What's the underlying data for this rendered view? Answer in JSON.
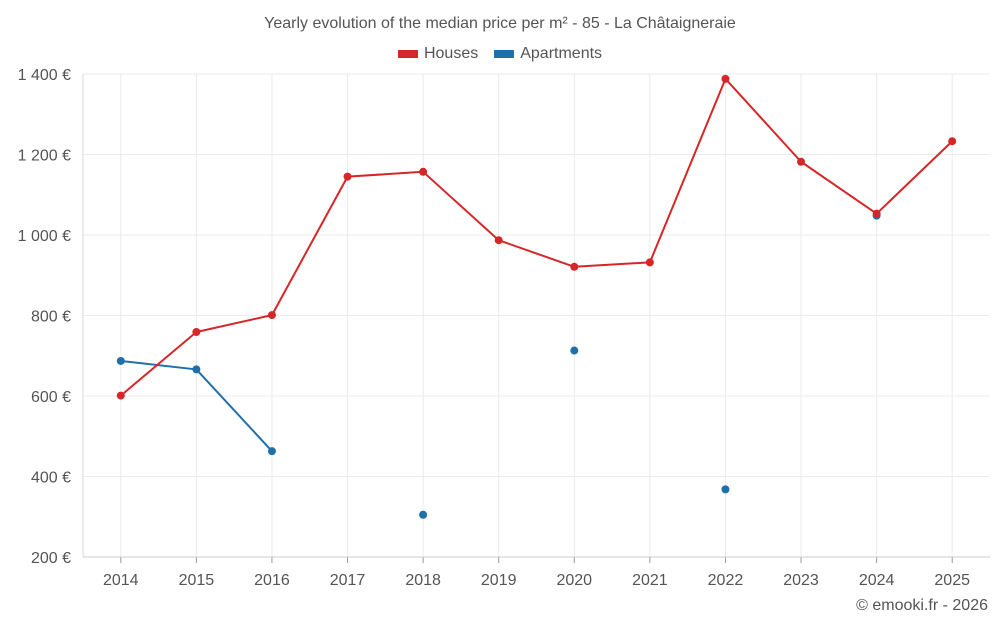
{
  "chart_data": {
    "type": "line",
    "title": "Yearly evolution of the median price per m² - 85 - La Châtaigneraie",
    "categories": [
      "2014",
      "2015",
      "2016",
      "2017",
      "2018",
      "2019",
      "2020",
      "2021",
      "2022",
      "2023",
      "2024",
      "2025"
    ],
    "ylim": [
      200,
      1400
    ],
    "yticks": [
      {
        "value": 200,
        "label": "200 €"
      },
      {
        "value": 400,
        "label": "400 €"
      },
      {
        "value": 600,
        "label": "600 €"
      },
      {
        "value": 800,
        "label": "800 €"
      },
      {
        "value": 1000,
        "label": "1 000 €"
      },
      {
        "value": 1200,
        "label": "1 200 €"
      },
      {
        "value": 1400,
        "label": "1 400 €"
      }
    ],
    "grid": true,
    "legend_position": "top-center",
    "series": [
      {
        "name": "Houses",
        "color": "#d62728",
        "values": [
          601,
          759,
          801,
          1145,
          1157,
          987,
          921,
          932,
          1388,
          1182,
          1053,
          1233
        ]
      },
      {
        "name": "Apartments",
        "color": "#1f6fa8",
        "values": [
          687,
          666,
          463,
          null,
          305,
          null,
          713,
          null,
          368,
          null,
          1048,
          null
        ]
      }
    ]
  },
  "footer": {
    "credit": "© emooki.fr - 2026"
  }
}
